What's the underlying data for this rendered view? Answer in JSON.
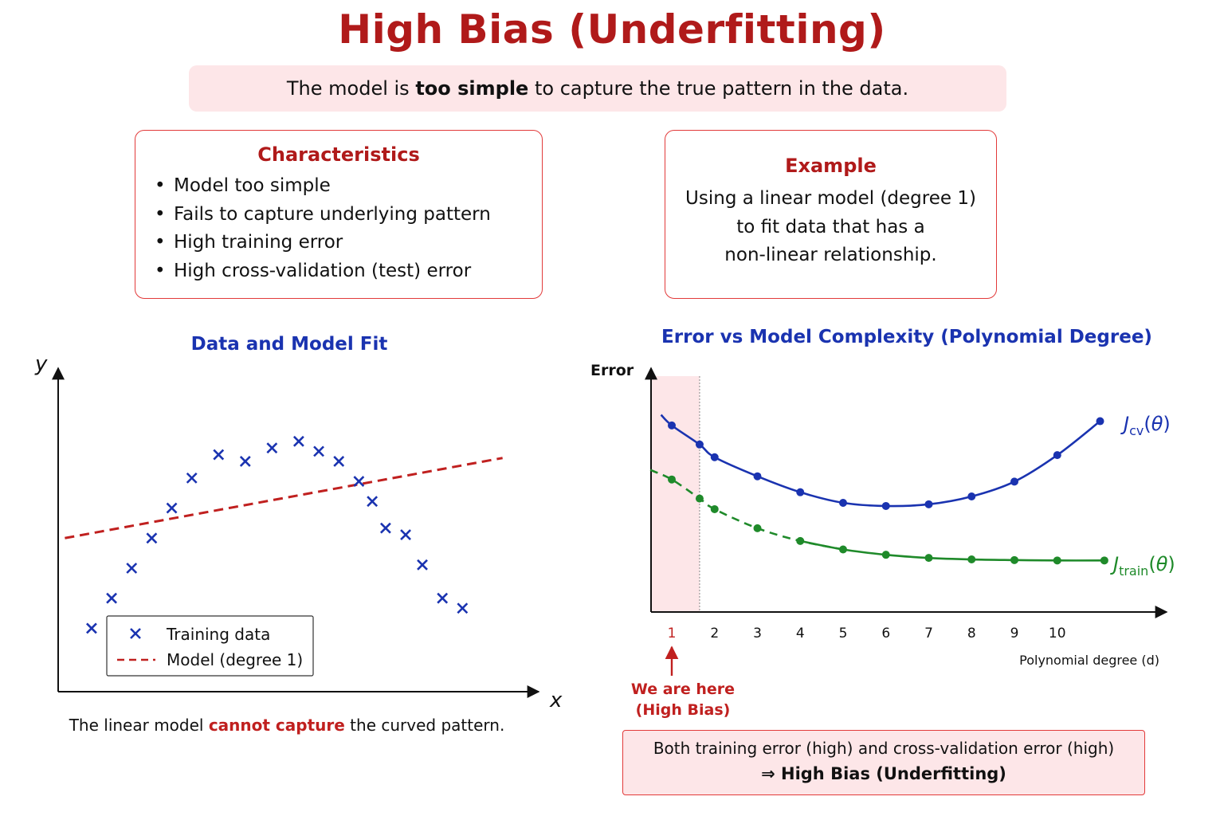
{
  "title": "High Bias (Underfitting)",
  "subtitle": {
    "before": "The model is ",
    "bold": "too simple",
    "after": " to capture the true pattern in the data."
  },
  "characteristics": {
    "title": "Characteristics",
    "items": [
      "Model too simple",
      "Fails to capture underlying pattern",
      "High training error",
      "High cross-validation (test) error"
    ]
  },
  "example": {
    "title": "Example",
    "lines": [
      "Using a linear model (degree 1)",
      "to fit data that has a",
      "non-linear relationship."
    ]
  },
  "left_caption": {
    "before": "The linear model ",
    "emphasis": "cannot capture",
    "after": " the curved pattern."
  },
  "annotation": {
    "line1": "We are here",
    "line2": "(High Bias)"
  },
  "conclusion": {
    "line1": "Both training error (high) and cross-validation error (high)",
    "line2": "⇒ High Bias (Underfitting)"
  },
  "colors": {
    "title_red": "#b01a1a",
    "blue": "#1a33b0",
    "green": "#1f8a2a",
    "model_red": "#c0201f",
    "highlight_pink": "#fde6e8"
  },
  "chart_data": [
    {
      "type": "scatter",
      "title": "Data and Model Fit",
      "xlabel": "x",
      "ylabel": "y",
      "series": [
        {
          "name": "Training data",
          "marker": "x",
          "color": "#1a33b0",
          "points": [
            [
              1.0,
              1.9
            ],
            [
              1.6,
              2.8
            ],
            [
              2.2,
              3.7
            ],
            [
              2.8,
              4.6
            ],
            [
              3.4,
              5.5
            ],
            [
              4.0,
              6.4
            ],
            [
              4.8,
              7.1
            ],
            [
              5.6,
              6.9
            ],
            [
              6.4,
              7.3
            ],
            [
              7.2,
              7.5
            ],
            [
              7.8,
              7.2
            ],
            [
              8.4,
              6.9
            ],
            [
              9.0,
              6.3
            ],
            [
              9.4,
              5.7
            ],
            [
              9.8,
              4.9
            ],
            [
              10.4,
              4.7
            ],
            [
              10.9,
              3.8
            ],
            [
              11.5,
              2.8
            ],
            [
              12.1,
              2.5
            ]
          ]
        },
        {
          "name": "Model (degree 1)",
          "style": "dashed",
          "color": "#c0201f",
          "line": [
            [
              0.2,
              4.6
            ],
            [
              13.3,
              7.0
            ]
          ]
        }
      ],
      "xlim": [
        0,
        14
      ],
      "ylim": [
        0,
        9.5
      ],
      "legend": "bottom-left"
    },
    {
      "type": "line",
      "title": "Error vs Model Complexity (Polynomial Degree)",
      "xlabel": "Polynomial degree (d)",
      "ylabel": "Error",
      "x_ticks": [
        1,
        2,
        3,
        4,
        5,
        6,
        7,
        8,
        9,
        10
      ],
      "highlight_tick": 1,
      "highlight_range": [
        0.5,
        1.65
      ],
      "series": [
        {
          "name": "J_cv(θ)",
          "color": "#1a33b0",
          "style": "solid",
          "points": [
            [
              1,
              0.88
            ],
            [
              1.65,
              0.79
            ],
            [
              2,
              0.73
            ],
            [
              3,
              0.64
            ],
            [
              4,
              0.565
            ],
            [
              5,
              0.515
            ],
            [
              6,
              0.5
            ],
            [
              7,
              0.508
            ],
            [
              8,
              0.545
            ],
            [
              9,
              0.615
            ],
            [
              10,
              0.74
            ],
            [
              11,
              0.9
            ]
          ]
        },
        {
          "name": "J_train(θ)",
          "color": "#1f8a2a",
          "style": "dashed-then-solid",
          "points": [
            [
              1,
              0.625
            ],
            [
              1.65,
              0.535
            ],
            [
              2,
              0.485
            ],
            [
              3,
              0.395
            ],
            [
              4,
              0.335
            ],
            [
              5,
              0.295
            ],
            [
              6,
              0.27
            ],
            [
              7,
              0.255
            ],
            [
              8,
              0.248
            ],
            [
              9,
              0.245
            ],
            [
              10,
              0.243
            ],
            [
              11.1,
              0.243
            ]
          ]
        }
      ],
      "xlim": [
        0.5,
        12.4
      ],
      "ylim": [
        0,
        1.12
      ]
    }
  ]
}
